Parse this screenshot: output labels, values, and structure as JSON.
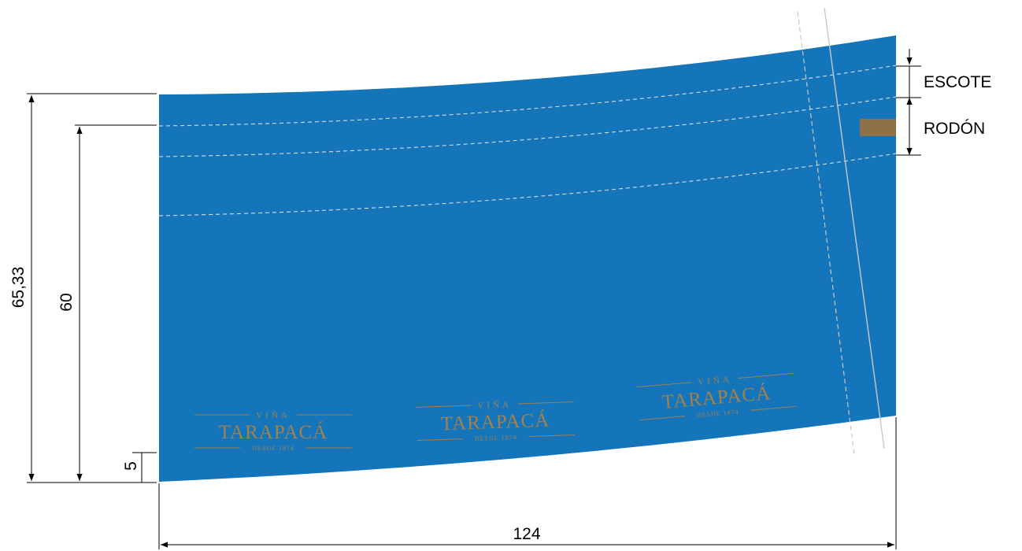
{
  "dimensions": {
    "total_height": "65,33",
    "print_height": "60",
    "bottom_margin": "5",
    "width": "124"
  },
  "legend": {
    "neckline": "ESCOTE",
    "roll": "RODÓN"
  },
  "logo": {
    "top": "VIÑA",
    "main": "TARAPACÁ",
    "sub": "DESDE 1874"
  },
  "colors": {
    "label_background": "#1475bb",
    "logo_gold": "#a3804e",
    "roll_swatch": "#8f7149",
    "fold_lines": "#d7dee6"
  }
}
